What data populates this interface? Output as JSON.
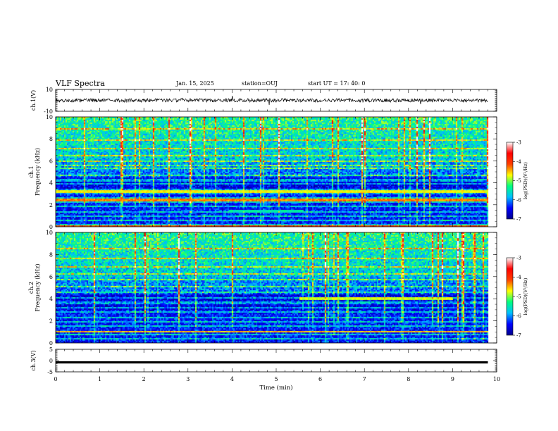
{
  "header": {
    "title": "VLF Spectra",
    "date": "Jan. 15, 2025",
    "station": "station=OUJ",
    "start_ut": "start  UT =   17: 40: 0"
  },
  "chart_data": [
    {
      "type": "line",
      "panel": "ch1-waveform",
      "ylabel": "ch.1(V)",
      "ylim": [
        -10,
        10
      ],
      "yticks": [
        "10",
        "-10"
      ],
      "xlim": [
        0,
        10
      ],
      "series": [
        {
          "values_note": "",
          "mean": 0,
          "amplitude": 1
        }
      ]
    },
    {
      "type": "heatmap",
      "panel": "ch1-spectrogram",
      "ylabel": "ch.1\nFrequency (kHz)",
      "ylabel_lines": [
        "ch.1",
        "Frequency (kHz)"
      ],
      "xlim": [
        0,
        10
      ],
      "data_end_min": 9.8,
      "ylim": [
        0,
        10
      ],
      "yticks": [
        "0",
        "2",
        "4",
        "6",
        "8",
        "10"
      ],
      "colorbar": {
        "label": "log(PSD)(V²/Hz)",
        "range": [
          -7,
          -3
        ],
        "ticks": [
          "-3",
          "-4",
          "-5",
          "-6",
          "-7"
        ],
        "colors": [
          "#00008b",
          "#0000ff",
          "#00bfff",
          "#00ff80",
          "#ffff00",
          "#ff4000",
          "#ff0000",
          "#ffffff"
        ]
      },
      "bands_khz": [
        0.3,
        0.6,
        1.0,
        1.4,
        1.9,
        2.3,
        2.7,
        3.1,
        3.5,
        4.0,
        4.3,
        4.7,
        5.4,
        5.6,
        6.0,
        6.5,
        7.2,
        7.9,
        9.0
      ],
      "strong_bands_khz": [
        {
          "f": 0.1,
          "t0": 0,
          "t1": 9.8,
          "level": -3.6
        },
        {
          "f": 1.5,
          "t0": 3.9,
          "t1": 5.6,
          "level": -5.0
        },
        {
          "f": 2.5,
          "t0": 0,
          "t1": 9.8,
          "level": -3.8
        },
        {
          "f": 3.3,
          "t0": 0,
          "t1": 9.8,
          "level": -4.2
        }
      ]
    },
    {
      "type": "heatmap",
      "panel": "ch2-spectrogram",
      "ylabel": "ch.2\nFrequency (kHz)",
      "ylabel_lines": [
        "ch.2",
        "Frequency (kHz)"
      ],
      "xlim": [
        0,
        10
      ],
      "data_end_min": 9.8,
      "ylim": [
        0,
        10
      ],
      "yticks": [
        "0",
        "2",
        "4",
        "6",
        "8",
        "10"
      ],
      "colorbar": {
        "label": "log(PSD)(V²/Hz)",
        "range": [
          -7,
          -3
        ],
        "ticks": [
          "-3",
          "-4",
          "-5",
          "-6",
          "-7"
        ],
        "colors": [
          "#00008b",
          "#0000ff",
          "#00bfff",
          "#00ff80",
          "#ffff00",
          "#ff4000",
          "#ff0000",
          "#ffffff"
        ]
      },
      "bands_khz": [
        0.4,
        0.8,
        1.1,
        1.6,
        2.0,
        2.4,
        2.9,
        3.3,
        3.7,
        4.1,
        4.6,
        5.2,
        5.8,
        6.3,
        7.0,
        7.7,
        8.6
      ],
      "strong_bands_khz": [
        {
          "f": 1.1,
          "t0": 0,
          "t1": 9.8,
          "level": -4.0
        },
        {
          "f": 4.1,
          "t0": 5.5,
          "t1": 9.0,
          "level": -4.3
        },
        {
          "f": 7.7,
          "t0": 0,
          "t1": 9.8,
          "level": -4.6
        }
      ]
    },
    {
      "type": "line",
      "panel": "ch3-waveform",
      "ylabel": "ch.3(V)",
      "ylim": [
        -5,
        5
      ],
      "yticks": [
        "5",
        "0",
        "-5"
      ],
      "xlim": [
        0,
        10
      ],
      "xlabel": "Time (min)",
      "xticks": [
        "0",
        "1",
        "2",
        "3",
        "4",
        "5",
        "6",
        "7",
        "8",
        "9",
        "10"
      ],
      "series": [
        {
          "constant": -0.8
        }
      ]
    }
  ]
}
